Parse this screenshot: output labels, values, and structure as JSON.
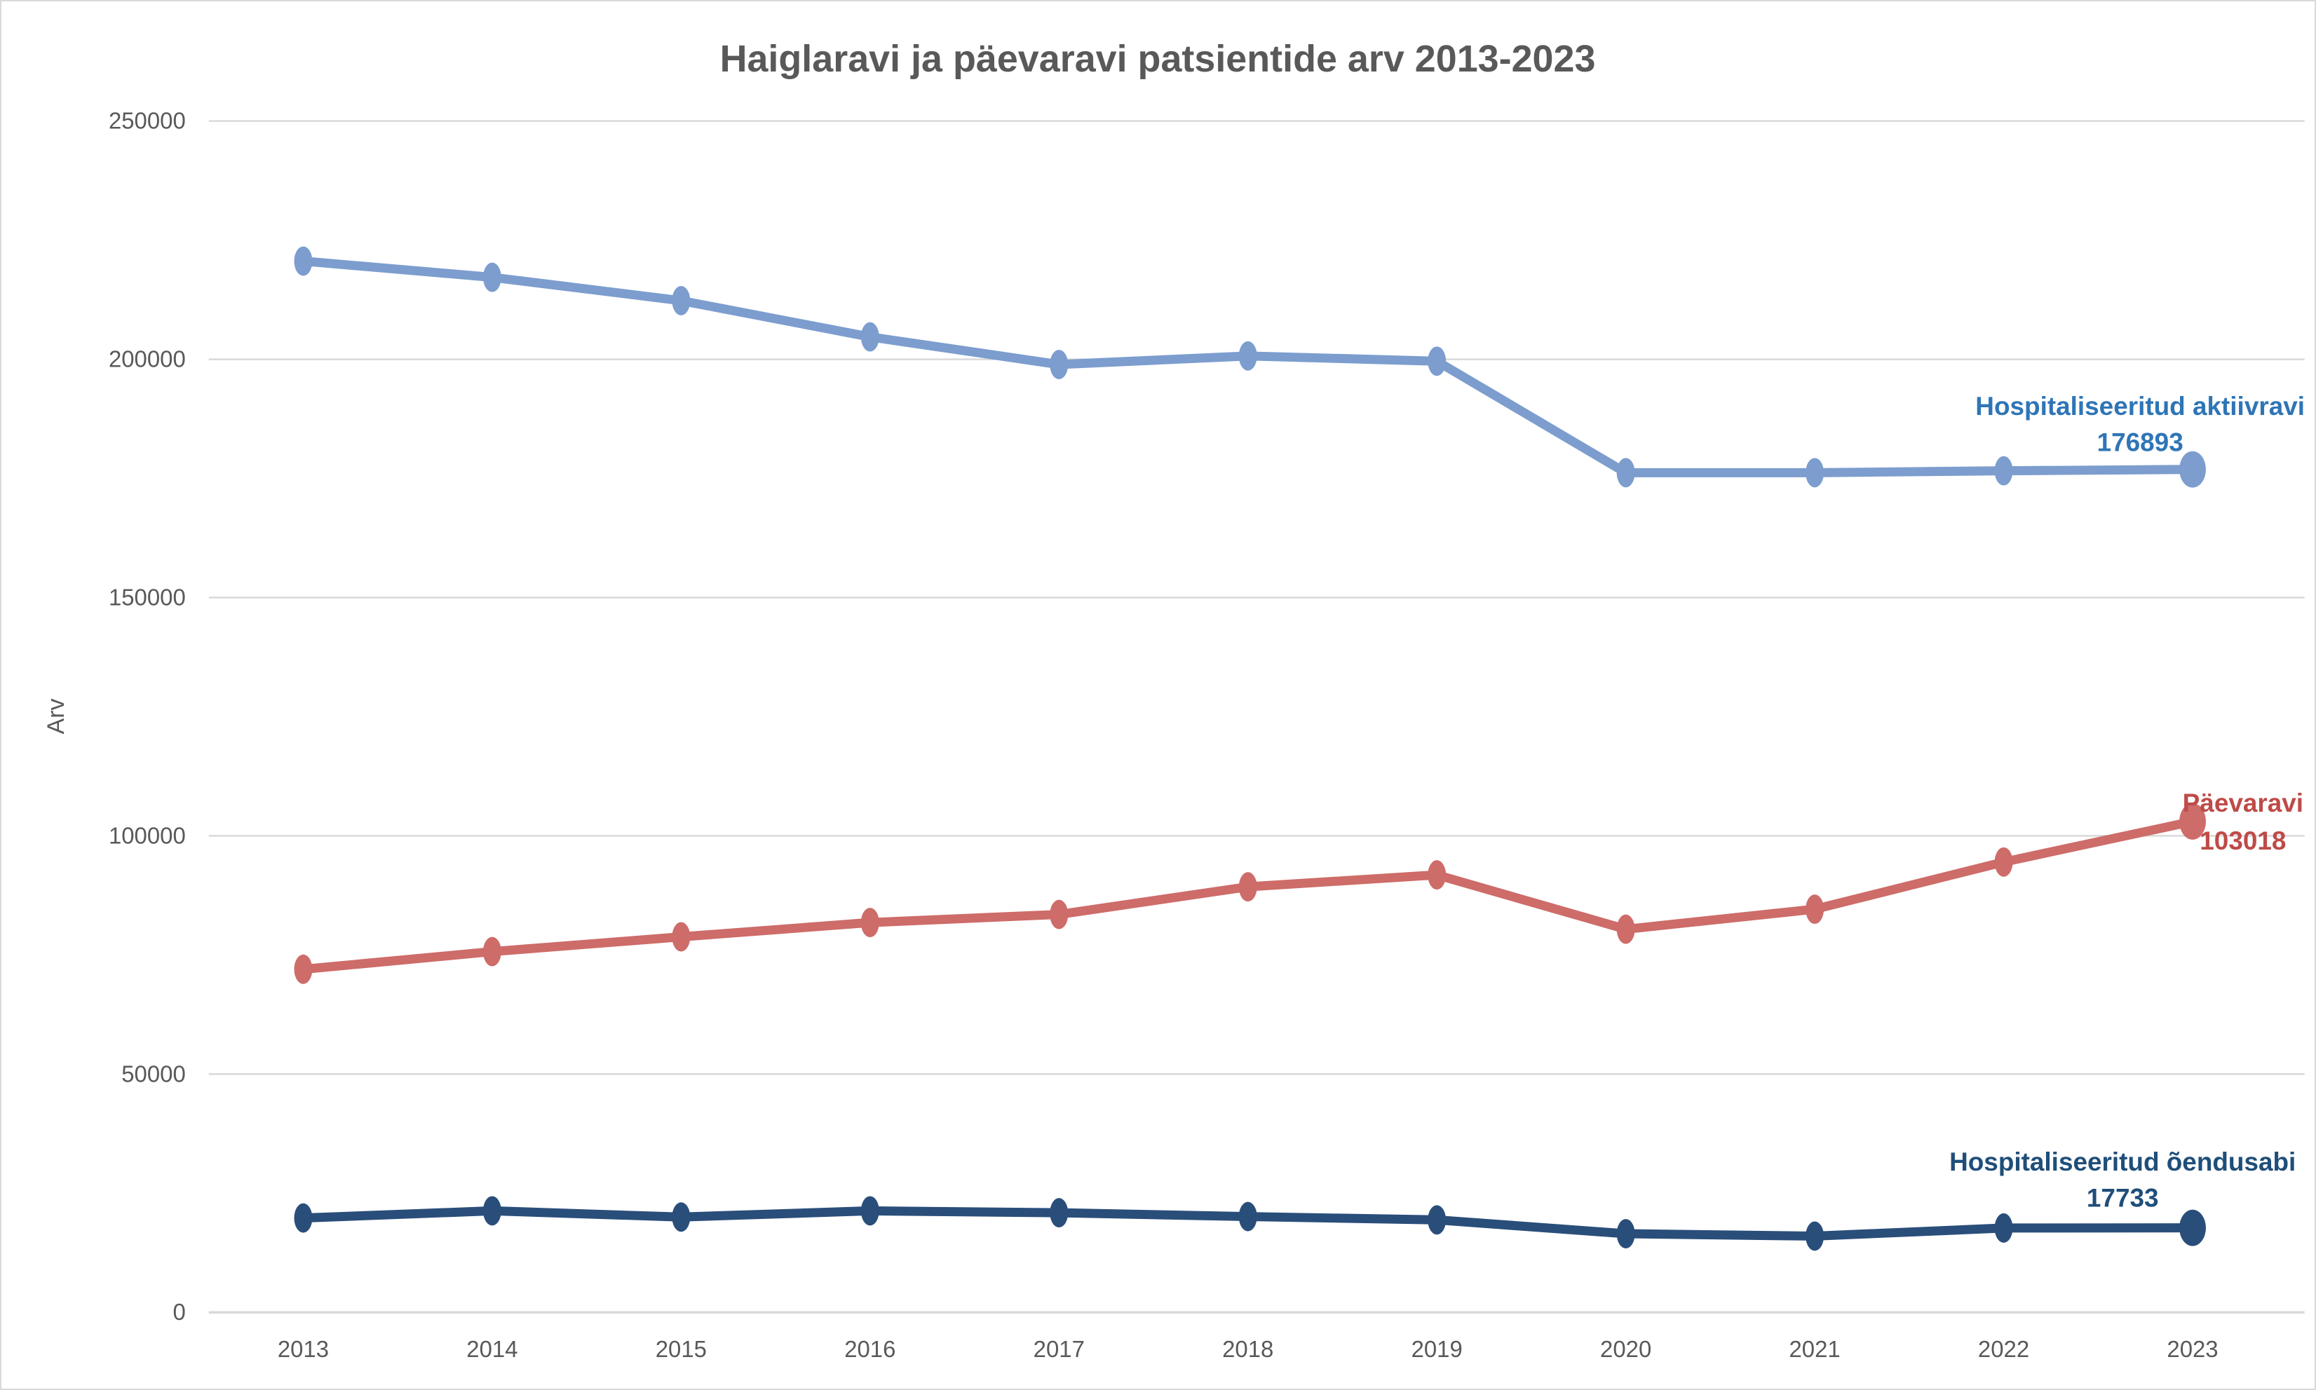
{
  "chart_data": {
    "type": "line",
    "title": "Haiglaravi ja päevaravi patsientide arv 2013-2023",
    "ylabel": "Arv",
    "xlabel": "",
    "x": [
      "2013",
      "2014",
      "2015",
      "2016",
      "2017",
      "2018",
      "2019",
      "2020",
      "2021",
      "2022",
      "2023"
    ],
    "y_ticks": [
      "0",
      "50000",
      "100000",
      "150000",
      "200000",
      "250000"
    ],
    "ylim": [
      0,
      250000
    ],
    "grid": "horizontal-only",
    "legend_position": "series-end-labels",
    "series": [
      {
        "name": "Hospitaliseeritud aktiivravi",
        "end_label_value": "176893",
        "line_color": "#7C9DCE",
        "label_color": "#2E75B6",
        "values": [
          220600,
          217200,
          212300,
          204700,
          198900,
          200700,
          199600,
          176200,
          176200,
          176600,
          176893
        ]
      },
      {
        "name": "Päevaravi",
        "end_label_value": "103018",
        "line_color": "#CD6C69",
        "label_color": "#BE4B48",
        "values": [
          72000,
          75700,
          78800,
          81800,
          83500,
          89300,
          91800,
          80400,
          84600,
          94500,
          103018
        ]
      },
      {
        "name": "Hospitaliseeritud õendusabi",
        "end_label_value": "17733",
        "line_color": "#2A4E7A",
        "label_color": "#1F4E79",
        "values": [
          19800,
          21300,
          20000,
          21300,
          20900,
          20100,
          19400,
          16500,
          16000,
          17700,
          17733
        ]
      }
    ]
  },
  "colors": {
    "background": "#FFFFFF",
    "gridline": "#D9D9D9",
    "axis_text": "#595959",
    "border": "#D9D9D9"
  }
}
